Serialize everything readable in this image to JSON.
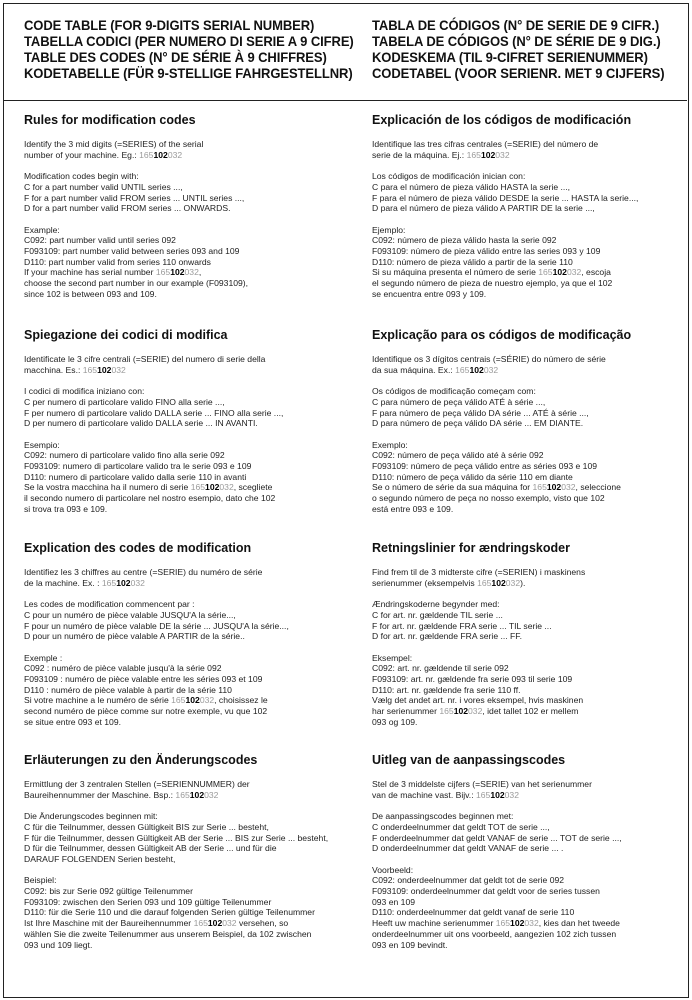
{
  "header": {
    "left": [
      "CODE TABLE  (FOR 9-DIGITS SERIAL NUMBER)",
      "TABELLA CODICI (PER NUMERO DI SERIE A 9 CIFRE)",
      "TABLE DES CODES  (N° DE SÉRIE À 9 CHIFFRES)",
      "KODETABELLE (FÜR 9-STELLIGE FAHRGESTELLNR)"
    ],
    "right": [
      "TABLA DE CÓDIGOS  (N° DE SERIE DE 9 CIFR.)",
      "TABELA DE CÓDIGOS  (N° DE SÉRIE DE 9 DIG.)",
      "KODESKEMA (TIL 9-CIFRET SERIENUMMER)",
      "CODETABEL (VOOR SERIENR. MET 9 CIJFERS)"
    ]
  },
  "serial": {
    "prefix": "165",
    "series": "102",
    "suffix": "032",
    "muted_color": "#9a9a9a"
  },
  "sections": [
    {
      "lang": "en",
      "title": "Rules for modification codes",
      "paragraphs": [
        [
          "Identify the 3 mid digits (=SERIES) of the serial",
          {
            "before": "number of your machine. Eg.: ",
            "after": ""
          }
        ],
        [
          "Modification codes begin with:",
          "C for a part number valid UNTIL series ...,",
          "F for a part number valid FROM series ... UNTIL series ...,",
          "D for a part number valid FROM series ... ONWARDS."
        ],
        [
          "Example:",
          "C092: part number valid until series 092",
          "F093109: part number valid between series 093 and 109",
          "D110: part number valid from series 110 onwards",
          {
            "before": "If your machine has serial number ",
            "after": ","
          },
          "choose the second part number in our example (F093109),",
          "since 102 is between 093 and 109."
        ]
      ]
    },
    {
      "lang": "es",
      "title": "Explicación de los códigos de modificación",
      "paragraphs": [
        [
          "Identifique las tres cifras centrales (=SERIE) del número de",
          {
            "before": "serie de la máquina. Ej.: ",
            "after": ""
          }
        ],
        [
          "Los códigos de modificación inician con:",
          "C para el número de pieza válido HASTA la serie ...,",
          "F para el número de pieza válido DESDE la serie ... HASTA la serie...,",
          "D para el número de pieza válido A PARTIR DE la serie ...,"
        ],
        [
          "Ejemplo:",
          "C092: número de pieza válido hasta la serie 092",
          "F093109: número de pieza válido entre las series 093 y 109",
          "D110: número de pieza válido a partir de la serie 110",
          {
            "before": "Si su máquina presenta el número de serie ",
            "after": ", escoja"
          },
          "el segundo número de pieza de nuestro ejemplo, ya que el 102",
          "se encuentra entre 093 y 109."
        ]
      ]
    },
    {
      "lang": "it",
      "title": "Spiegazione dei codici di modifica",
      "paragraphs": [
        [
          "Identificate le 3 cifre centrali (=SERIE) del numero di serie della",
          {
            "before": "macchina. Es.: ",
            "after": ""
          }
        ],
        [
          "I codici di modifica iniziano con:",
          "C per numero di particolare valido FINO alla serie ...,",
          "F per numero di particolare valido DALLA serie ... FINO alla serie ...,",
          "D per numero di particolare valido DALLA serie ... IN AVANTI."
        ],
        [
          "Esempio:",
          "C092: numero di particolare valido fino alla serie 092",
          "F093109: numero di particolare valido tra le serie 093 e 109",
          "D110: numero di particolare valido dalla serie 110 in avanti",
          {
            "before": "Se la vostra macchina ha il numero di serie ",
            "after": ", scegliete"
          },
          "il secondo numero di particolare nel nostro esempio, dato che 102",
          "si trova tra 093 e 109."
        ]
      ]
    },
    {
      "lang": "pt",
      "title": "Explicação para os códigos de modificação",
      "paragraphs": [
        [
          "Identifique os 3 dígitos centrais (=SÉRIE) do número de série",
          {
            "before": "da sua máquina. Ex.: ",
            "after": ""
          }
        ],
        [
          "Os códigos de modificação começam com:",
          "C para número de peça válido ATÉ à série ...,",
          "F para número de peça válido DA série ... ATÉ à série ...,",
          "D para número de peça válido DA série ... EM DIANTE."
        ],
        [
          "Exemplo:",
          "C092: número de peça válido até à série 092",
          "F093109: número de peça válido entre as séries 093 e 109",
          "D110: número de peça válido da série 110 em diante",
          {
            "before": "Se o número de série da sua máquina for ",
            "after": ", seleccione"
          },
          "o segundo número de peça no nosso exemplo, visto que 102",
          "está entre 093 e 109."
        ]
      ]
    },
    {
      "lang": "fr",
      "title": "Explication des codes de modification",
      "paragraphs": [
        [
          "Identifiez les 3 chiffres au centre (=SERIE) du numéro de série",
          {
            "before": "de la machine. Ex. : ",
            "after": ""
          }
        ],
        [
          "Les codes de modification commencent par :",
          "C pour un numéro de pièce valable JUSQU'A la série...,",
          "F pour un numéro de pièce valable DE la série ... JUSQU'A la série...,",
          "D pour un numéro de pièce valable A PARTIR de la série.."
        ],
        [
          "Exemple :",
          "C092 : numéro de pièce valable jusqu'à la série 092",
          "F093109 : numéro de pièce valable entre les séries 093 et 109",
          "D110 : numéro de pièce valable à partir de la série 110",
          {
            "before": "Si votre machine a le numéro de série ",
            "after": ", choisissez le"
          },
          "second numéro de pièce comme sur notre exemple, vu que 102",
          "se situe entre 093 et 109."
        ]
      ]
    },
    {
      "lang": "da",
      "title": "Retningslinier for ændringskoder",
      "paragraphs": [
        [
          "Find frem til de 3 midterste cifre (=SERIEN) i maskinens",
          {
            "before": "serienummer (eksempelvis ",
            "after": ")."
          }
        ],
        [
          "Ændringskoderne begynder med:",
          "C for art. nr. gældende TIL serie ...",
          "F for art. nr. gældende FRA serie ... TIL serie ...",
          "D for art. nr. gældende FRA serie ... FF."
        ],
        [
          "Eksempel:",
          "C092: art. nr. gældende til serie 092",
          "F093109: art. nr. gældende fra serie 093 til serie 109",
          "D110: art. nr. gældende fra serie 110 ff.",
          "Vælg det andet art. nr. i vores eksempel, hvis maskinen",
          {
            "before": "har serienummer ",
            "after": ", idet tallet 102 er mellem"
          },
          "093 og 109."
        ]
      ]
    },
    {
      "lang": "de",
      "title": "Erläuterungen zu den Änderungscodes",
      "paragraphs": [
        [
          "Ermittlung der 3 zentralen Stellen (=SERIENNUMMER) der",
          {
            "before": "Baureihennummer der Maschine. Bsp.: ",
            "after": ""
          }
        ],
        [
          "Die Änderungscodes beginnen mit:",
          "C für die Teilnummer, dessen Gültigkeit BIS zur Serie ... besteht,",
          "F für die Teilnummer, dessen Gültigkeit AB der Serie ... BIS zur Serie ... besteht,",
          "D für die Teilnummer, dessen Gültigkeit AB der Serie ... und für die",
          "DARAUF FOLGENDEN Serien besteht,"
        ],
        [
          "Beispiel:",
          "C092: bis zur Serie 092 gültige Teilenummer",
          "F093109: zwischen den Serien 093 und 109 gültige Teilenummer",
          "D110: für die Serie 110 und die darauf folgenden Serien gültige Teilenummer",
          {
            "before": "Ist Ihre Maschine mit der Baureihennummer ",
            "after": " versehen, so"
          },
          "wählen Sie die zweite Teilenummer aus unserem Beispiel, da 102 zwischen",
          "093 und 109 liegt."
        ]
      ]
    },
    {
      "lang": "nl",
      "title": "Uitleg van de aanpassingscodes",
      "paragraphs": [
        [
          "Stel de 3 middelste cijfers (=SERIE) van het serienummer",
          {
            "before": "van de machine vast. Bijv.: ",
            "after": ""
          }
        ],
        [
          "De aanpassingscodes beginnen met:",
          "C onderdeelnummer dat geldt TOT de serie ...,",
          "F onderdeelnummer dat geldt VANAF de serie ... TOT de serie ...,",
          "D onderdeelnummer dat geldt VANAF de serie ... ."
        ],
        [
          "Voorbeeld:",
          "C092: onderdeelnummer dat geldt tot de serie 092",
          "F093109: onderdeelnummer dat geldt voor de series tussen",
          "093 en 109",
          "D110: onderdeelnummer dat geldt vanaf de serie 110",
          {
            "before": "Heeft uw machine serienummer ",
            "after": ", kies dan het tweede"
          },
          "onderdeelnummer uit ons voorbeeld, aangezien 102 zich tussen",
          "093 en 109 bevindt."
        ]
      ]
    }
  ]
}
